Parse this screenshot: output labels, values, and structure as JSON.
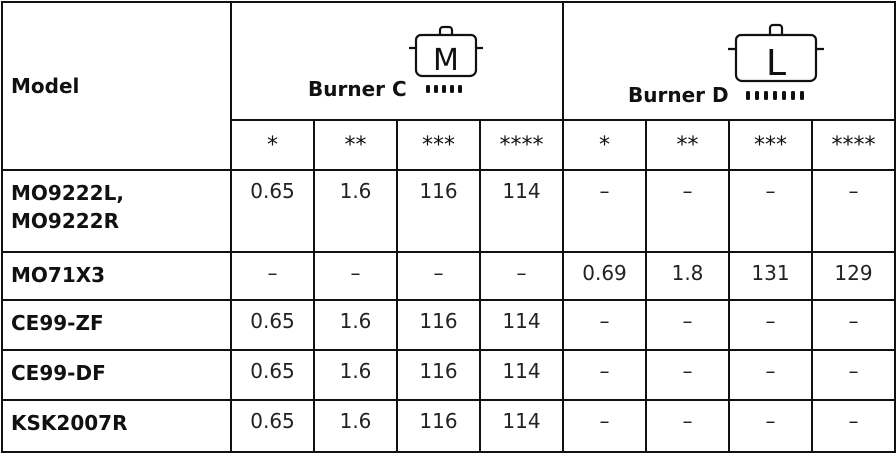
{
  "header": {
    "model_label": "Model",
    "burner_c": {
      "label": "Burner C",
      "pot_letter": "M",
      "icon": "pot-medium-icon"
    },
    "burner_d": {
      "label": "Burner D",
      "pot_letter": "L",
      "icon": "pot-large-icon"
    },
    "ratings": [
      "*",
      "**",
      "***",
      "****",
      "*",
      "**",
      "***",
      "****"
    ]
  },
  "rows": [
    {
      "model": "MO9222L,\nMO9222R",
      "values": [
        "0.65",
        "1.6",
        "116",
        "114",
        "–",
        "–",
        "–",
        "–"
      ]
    },
    {
      "model": "MO71X3",
      "values": [
        "–",
        "–",
        "–",
        "–",
        "0.69",
        "1.8",
        "131",
        "129"
      ]
    },
    {
      "model": "CE99-ZF",
      "values": [
        "0.65",
        "1.6",
        "116",
        "114",
        "–",
        "–",
        "–",
        "–"
      ]
    },
    {
      "model": "CE99-DF",
      "values": [
        "0.65",
        "1.6",
        "116",
        "114",
        "–",
        "–",
        "–",
        "–"
      ]
    },
    {
      "model": "KSK2007R",
      "values": [
        "0.65",
        "1.6",
        "116",
        "114",
        "–",
        "–",
        "–",
        "–"
      ]
    }
  ]
}
